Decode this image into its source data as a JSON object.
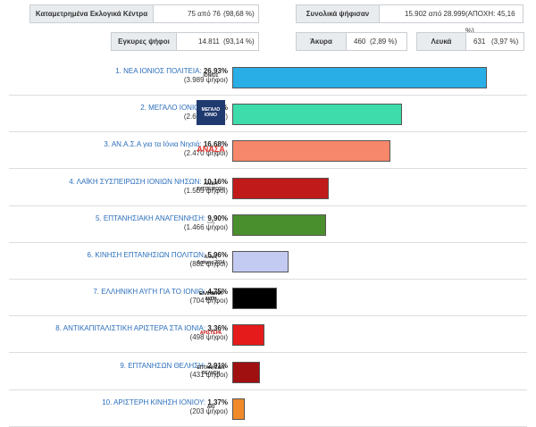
{
  "stats": {
    "centers_label": "Καταμετρημένα Εκλογικά Κέντρα",
    "centers_value": "75 από 76",
    "centers_pct": "(98,68 %)",
    "total_label": "Συνολικά ψήφισαν",
    "total_value": "15.902 από 28.999",
    "total_abstention": "(ΑΠΟΧΗ: 45,16 %)",
    "valid_label": "Εγκυρες ψήφοι",
    "valid_value": "14.811",
    "valid_pct": "(93,14 %)",
    "invalid_label": "Άκυρα",
    "invalid_value": "460",
    "invalid_pct": "(2,89 %)",
    "blank_label": "Λευκά",
    "blank_value": "631",
    "blank_pct": "(3,97 %)"
  },
  "parties": [
    {
      "name": "1. ΝΕΑ ΙΟΝΙΟΣ ΠΟΛΙΤΕΙΑ:",
      "pct": "26,93%",
      "votes": "(3.989 ψήφοι)",
      "share": 26.93,
      "color": "#29aee6",
      "logo": "nea-ionios-logo",
      "logo_text": "ΙΟΝΙΟΣ"
    },
    {
      "name": "2. ΜΕΓΑΛΟ ΙΟΝΙΟ:",
      "pct": "17,98%",
      "votes": "(2.663 ψήφοι)",
      "share": 17.98,
      "color": "#3ddcaa",
      "logo": "megalo-ionio-logo",
      "logo_text": "ΜΕΓΑΛΟ ΙΟΝΙΟ"
    },
    {
      "name": "3. ΑΝ.Α.Σ.Α για τα Ιόνια Νησιά:",
      "pct": "16,68%",
      "votes": "(2.470 ψήφοι)",
      "share": 16.68,
      "color": "#f7876a",
      "logo": "anasa-logo",
      "logo_text": "ΑΝΑΣΑ"
    },
    {
      "name": "4. ΛΑΪΚΗ ΣΥΣΠΕΙΡΩΣΗ ΙΟΝΙΩΝ ΝΗΣΩΝ:",
      "pct": "10,16%",
      "votes": "(1.505 ψήφοι)",
      "share": 10.16,
      "color": "#c01a1a",
      "logo": "laiki-syspeirosi-logo",
      "logo_text": "ΛΑΪΚΗ ΣΥΣΠΕΙΡΩΣΗ"
    },
    {
      "name": "5. ΕΠΤΑΝΗΣΙΑΚΗ ΑΝΑΓΕΝΝΗΣΗ:",
      "pct": "9,90%",
      "votes": "(1.466 ψήφοι)",
      "share": 9.9,
      "color": "#4a8f2e",
      "logo": "eptanisiaki-logo",
      "logo_text": "~~~"
    },
    {
      "name": "6. ΚΙΝΗΣΗ ΕΠΤΑΝΗΣΙΩΝ ΠΟΛΙΤΩΝ:",
      "pct": "5,96%",
      "votes": "(882 ψήφοι)",
      "share": 5.96,
      "color": "#c4cbf3",
      "logo": "kinisi-eptanision-logo",
      "logo_text": "Άλλος Δρόμος 2014"
    },
    {
      "name": "7. ΕΛΛΗΝΙΚΗ ΑΥΓΗ ΓΙΑ ΤΟ ΙΟΝΙΟ:",
      "pct": "4,75%",
      "votes": "(704 ψήφοι)",
      "share": 4.75,
      "color": "#000000",
      "logo": "elliniki-avgi-logo",
      "logo_text": "ΕΛΛΗΝΙΚΗ ΑΥΓΗ"
    },
    {
      "name": "8. ΑΝΤΙΚΑΠΙΤΑΛΙΣΤΙΚΗ ΑΡΙΣΤΕΡΑ ΣΤΑ ΙΟΝΙΑ:",
      "pct": "3,36%",
      "votes": "(498 ψήφοι)",
      "share": 3.36,
      "color": "#e51b1b",
      "logo": "antikapitalistiki-logo",
      "logo_text": "ΑΡΙΣΤΕΡΑ"
    },
    {
      "name": "9. ΕΠΤΑΝΗΣΩΝ ΘΕΛΗΣΗ:",
      "pct": "2,91%",
      "votes": "(431 ψήφοι)",
      "share": 2.91,
      "color": "#a01010",
      "logo": "eptaniso-thelisi-logo",
      "logo_text": "ΕΠΤΑΝΗΣΩΝ ΘΕΛΗΣΗ"
    },
    {
      "name": "10. ΑΡΙΣΤΕΡΗ ΚΙΝΗΣΗ ΙΟΝΙΟΥ:",
      "pct": "1,37%",
      "votes": "(203 ψήφοι)",
      "share": 1.37,
      "color": "#f08a2a",
      "logo": "aristeri-kinisi-logo",
      "logo_text": "ΑΚΙ"
    }
  ]
}
